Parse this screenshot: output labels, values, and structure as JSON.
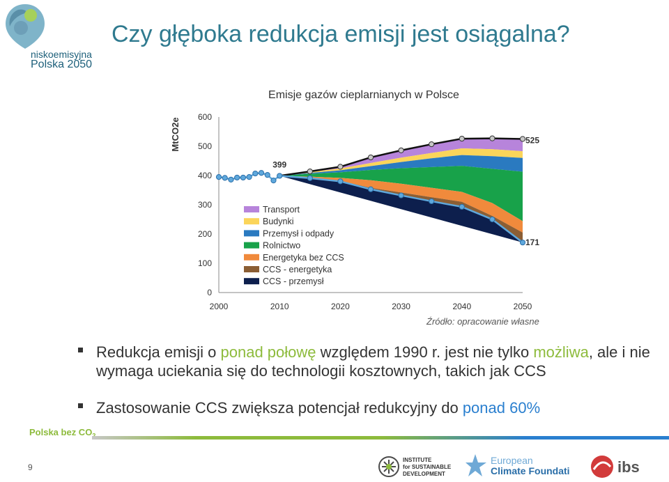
{
  "brand": {
    "logo_line1": "niskoemisyjna",
    "logo_line2": "Polska 2050"
  },
  "page_title": "Czy głęboka redukcja emisji jest osiągalna?",
  "chart_data": {
    "type": "area",
    "title": "Emisje gazów cieplarnianych w Polsce",
    "ylabel": "MtCO2e",
    "xlabel": "",
    "ylim": [
      0,
      600
    ],
    "xlim": [
      2000,
      2050
    ],
    "yticks": [
      0,
      100,
      200,
      300,
      400,
      500,
      600
    ],
    "xticks": [
      2000,
      2010,
      2020,
      2030,
      2040,
      2050
    ],
    "grid": false,
    "legend_position": "left",
    "x": [
      2010,
      2015,
      2020,
      2025,
      2030,
      2035,
      2040,
      2045,
      2050
    ],
    "layer_tops": [
      {
        "name": "CCS - przemysł",
        "color": "#0d1f4d",
        "values": [
          399,
          391,
          380,
          353,
          332,
          312,
          293,
          250,
          171
        ]
      },
      {
        "name": "CCS - energetyka",
        "color": "#8b5e34",
        "values": [
          399,
          393,
          382,
          358,
          342,
          326,
          310,
          262,
          205
        ]
      },
      {
        "name": "Energetyka bez CCS",
        "color": "#f08a3c",
        "values": [
          399,
          396,
          392,
          384,
          372,
          358,
          344,
          306,
          244
        ]
      },
      {
        "name": "Rolnictwo",
        "color": "#18a24a",
        "values": [
          399,
          406,
          411,
          419,
          425,
          429,
          433,
          423,
          413
        ]
      },
      {
        "name": "Przemysł i odpady",
        "color": "#2a7ac0",
        "values": [
          399,
          409,
          418,
          432,
          446,
          459,
          470,
          466,
          460
        ]
      },
      {
        "name": "Budynki",
        "color": "#fbd55a",
        "values": [
          399,
          412,
          424,
          443,
          461,
          477,
          493,
          490,
          483
        ]
      },
      {
        "name": "Transport",
        "color": "#b784db",
        "values": [
          399,
          414,
          430,
          462,
          486,
          507,
          526,
          527,
          525
        ]
      }
    ],
    "history": {
      "x": [
        2000,
        2001,
        2002,
        2003,
        2004,
        2005,
        2006,
        2007,
        2008,
        2009,
        2010
      ],
      "values": [
        395,
        392,
        386,
        393,
        393,
        395,
        407,
        409,
        402,
        383,
        399
      ]
    },
    "labels": [
      {
        "text": "399",
        "x": 2010,
        "y": 399
      },
      {
        "text": "525",
        "x": 2050,
        "y": 525
      },
      {
        "text": "171",
        "x": 2050,
        "y": 171
      }
    ],
    "legend": [
      "Transport",
      "Budynki",
      "Przemysł i odpady",
      "Rolnictwo",
      "Energetyka bez CCS",
      "CCS - energetyka",
      "CCS - przemysł"
    ],
    "legend_colors": [
      "#b784db",
      "#fbd55a",
      "#2a7ac0",
      "#18a24a",
      "#f08a3c",
      "#8b5e34",
      "#0d1f4d"
    ]
  },
  "source_note": "Źródło: opracowanie własne",
  "bullets": {
    "b1_pre": "Redukcja emisji o ",
    "b1_green1": "ponad połowę",
    "b1_mid": " względem 1990 r. jest nie tylko ",
    "b1_green2": "możliwa",
    "b1_post": ", ale i nie wymaga uciekania się do technologii kosztownych, takich jak CCS",
    "b2_pre": "Zastosowanie CCS zwiększa potencjał redukcyjny do ",
    "b2_blue": "ponad 60%"
  },
  "footer": {
    "logo_text": "Polska bez CO",
    "logo_sub": "2",
    "page_number": "9"
  },
  "partners": {
    "isd_line1": "INSTITUTE",
    "isd_line2": "for SUSTAINABLE",
    "isd_line3": "DEVELOPMENT",
    "ecf_line1": "European",
    "ecf_line2": "Climate Foundation",
    "ibs_name": "ibs"
  },
  "colors": {
    "title": "#2f7a8f",
    "accent_green": "#8dbb3c",
    "accent_blue": "#2a7fcf",
    "marker": "#5fa8dc"
  }
}
